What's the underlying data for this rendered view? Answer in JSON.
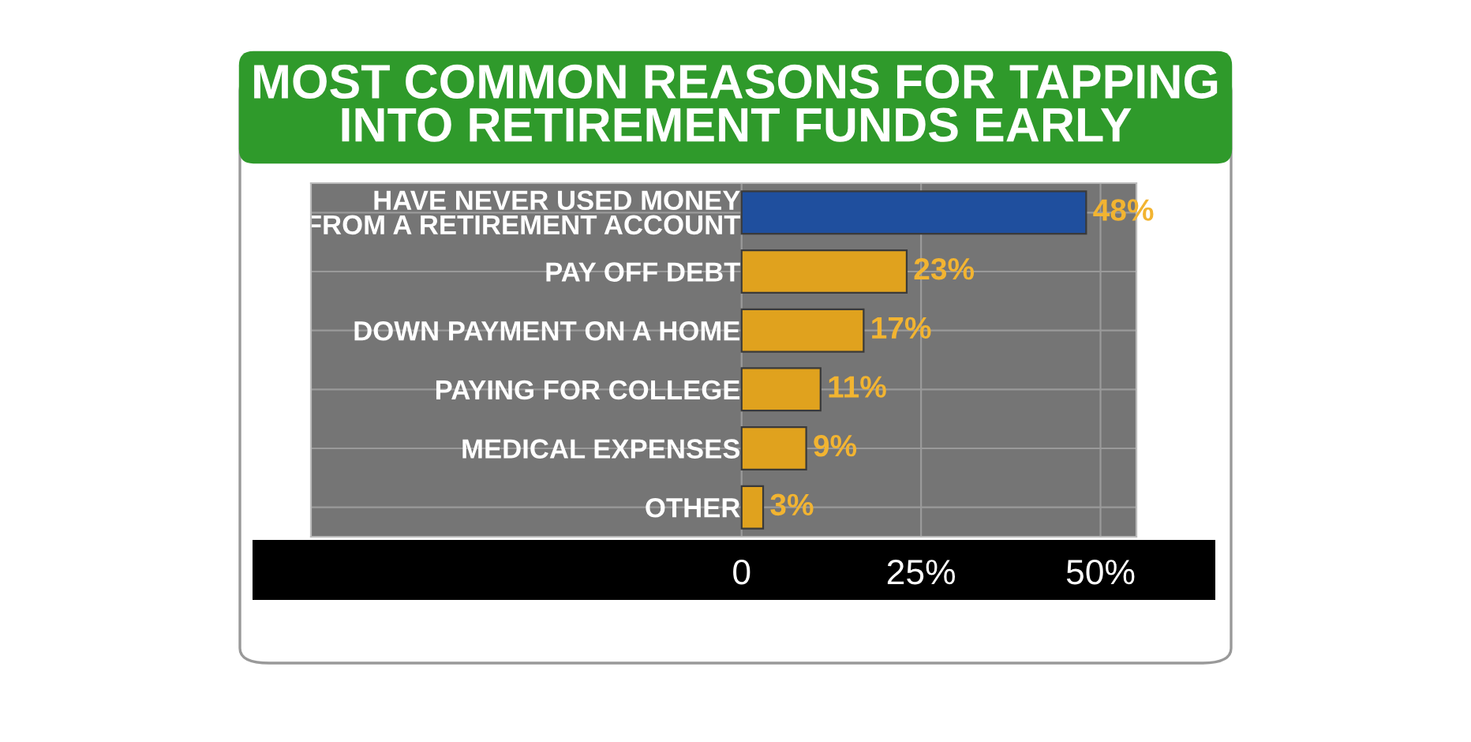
{
  "chart_data": {
    "type": "bar",
    "orientation": "horizontal",
    "title": "MOST COMMON REASONS FOR TAPPING\nINTO RETIREMENT FUNDS EARLY",
    "categories": [
      "HAVE NEVER USED MONEY\nFROM A RETIREMENT ACCOUNT",
      "PAY OFF DEBT",
      "DOWN PAYMENT ON A HOME",
      "PAYING FOR COLLEGE",
      "MEDICAL EXPENSES",
      "OTHER"
    ],
    "values": [
      48,
      23,
      17,
      11,
      9,
      3
    ],
    "colors": [
      "#1f4f9e",
      "#e0a21e",
      "#e0a21e",
      "#e0a21e",
      "#e0a21e",
      "#e0a21e"
    ],
    "value_labels": [
      "48%",
      "23%",
      "17%",
      "11%",
      "9%",
      "3%"
    ],
    "xlim": [
      -60,
      55
    ],
    "xticks": [
      0,
      {
        "value": 25,
        "label": "25%"
      },
      {
        "value": 50,
        "label": "50%"
      }
    ],
    "grid": true
  }
}
